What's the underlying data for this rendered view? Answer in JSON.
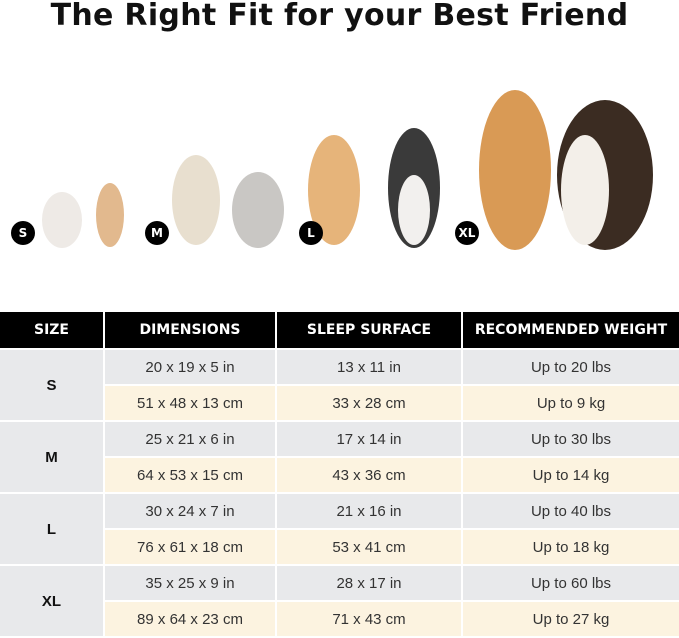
{
  "title": "The Right Fit for your Best Friend",
  "badges": [
    "S",
    "M",
    "L",
    "XL"
  ],
  "table": {
    "headers": [
      "SIZE",
      "DIMENSIONS",
      "SLEEP SURFACE",
      "RECOMMENDED WEIGHT"
    ],
    "rows": [
      {
        "size": "S",
        "imperial": [
          "20 x 19 x 5 in",
          "13 x 11 in",
          "Up to 20 lbs"
        ],
        "metric": [
          "51 x 48 x 13 cm",
          "33 x 28 cm",
          "Up to 9 kg"
        ]
      },
      {
        "size": "M",
        "imperial": [
          "25 x 21 x 6 in",
          "17 x 14 in",
          "Up to 30 lbs"
        ],
        "metric": [
          "64 x 53 x 15 cm",
          "43 x 36 cm",
          "Up to 14 kg"
        ]
      },
      {
        "size": "L",
        "imperial": [
          "30 x 24 x 7 in",
          "21 x 16 in",
          "Up to 40 lbs"
        ],
        "metric": [
          "76 x 61 x 18 cm",
          "53 x 41 cm",
          "Up to 18 kg"
        ]
      },
      {
        "size": "XL",
        "imperial": [
          "35 x 25 x 9 in",
          "28 x 17 in",
          "Up to 60 lbs"
        ],
        "metric": [
          "89 x 64 x 23 cm",
          "71 x 43 cm",
          "Up to 27 kg"
        ]
      }
    ]
  },
  "colors": {
    "header": "#000000",
    "imperial_row": "#e8e9eb",
    "metric_row": "#fcf3e0"
  }
}
